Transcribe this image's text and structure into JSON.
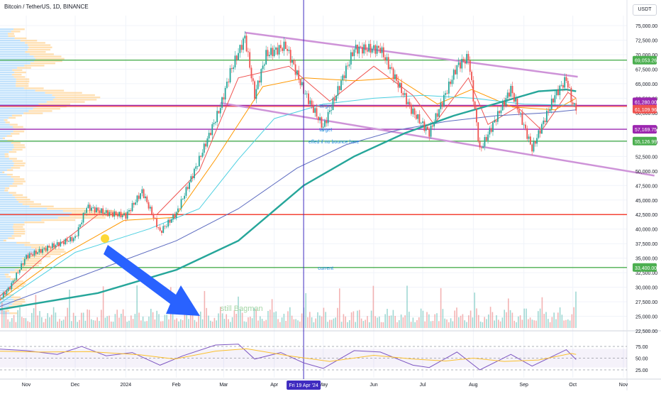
{
  "header": {
    "title": "Bitcoin / TetherUS, 1D, BINANCE",
    "unit_button": "USDT"
  },
  "chart_data": {
    "type": "candlestick",
    "title": "Bitcoin / TetherUS, 1D, BINANCE",
    "y_axis": {
      "unit": "USDT",
      "range": [
        22500,
        77500
      ],
      "tick_labels": [
        "75,000.00",
        "72,500.00",
        "70,000.00",
        "67,500.00",
        "65,000.00",
        "62,500.00",
        "60,000.00",
        "57,500.00",
        "55,000.00",
        "52,500.00",
        "50,000.00",
        "47,500.00",
        "45,000.00",
        "42,500.00",
        "40,000.00",
        "37,500.00",
        "35,000.00",
        "32,500.00",
        "30,000.00",
        "27,500.00",
        "25,000.00",
        "22,500.00"
      ],
      "tick_values": [
        75000,
        72500,
        70000,
        67500,
        65000,
        62500,
        60000,
        57500,
        55000,
        52500,
        50000,
        47500,
        45000,
        42500,
        40000,
        37500,
        35000,
        32500,
        30000,
        27500,
        25000,
        22500
      ]
    },
    "x_axis": {
      "tick_labels": [
        "Nov",
        "Dec",
        "2024",
        "Feb",
        "Mar",
        "Apr",
        "May",
        "Jun",
        "Jul",
        "Aug",
        "Sep",
        "Oct",
        "Nov"
      ],
      "tick_dates": [
        "2023-11-01",
        "2023-12-01",
        "2024-01-01",
        "2024-02-01",
        "2024-03-01",
        "2024-04-01",
        "2024-05-01",
        "2024-06-01",
        "2024-07-01",
        "2024-08-01",
        "2024-09-01",
        "2024-10-01",
        "2024-11-01"
      ],
      "crosshair_label": "Fri 19 Apr '24",
      "crosshair_date": "2024-04-19"
    },
    "price_close_path": [
      [
        "2023-10-12",
        26800
      ],
      [
        "2023-10-22",
        30000
      ],
      [
        "2023-11-01",
        35300
      ],
      [
        "2023-11-15",
        36900
      ],
      [
        "2023-12-01",
        38500
      ],
      [
        "2023-12-08",
        43800
      ],
      [
        "2023-12-20",
        42800
      ],
      [
        "2024-01-01",
        42300
      ],
      [
        "2024-01-11",
        46500
      ],
      [
        "2024-01-22",
        39500
      ],
      [
        "2024-02-01",
        42700
      ],
      [
        "2024-02-15",
        52000
      ],
      [
        "2024-02-28",
        61000
      ],
      [
        "2024-03-05",
        67000
      ],
      [
        "2024-03-14",
        73000
      ],
      [
        "2024-03-20",
        63000
      ],
      [
        "2024-03-27",
        70000
      ],
      [
        "2024-04-08",
        71500
      ],
      [
        "2024-04-19",
        63800
      ],
      [
        "2024-05-01",
        57500
      ],
      [
        "2024-05-20",
        71000
      ],
      [
        "2024-06-05",
        71000
      ],
      [
        "2024-06-24",
        60500
      ],
      [
        "2024-07-05",
        56500
      ],
      [
        "2024-07-22",
        68000
      ],
      [
        "2024-07-29",
        69500
      ],
      [
        "2024-08-05",
        53500
      ],
      [
        "2024-08-24",
        64100
      ],
      [
        "2024-09-06",
        53800
      ],
      [
        "2024-09-20",
        63000
      ],
      [
        "2024-09-27",
        65800
      ],
      [
        "2024-10-01",
        61300
      ],
      [
        "2024-10-03",
        61100
      ]
    ],
    "moving_averages": [
      {
        "color": "#ef5350",
        "points": [
          [
            "2023-10-12",
            27500
          ],
          [
            "2023-11-15",
            36000
          ],
          [
            "2023-12-15",
            42500
          ],
          [
            "2024-01-20",
            42500
          ],
          [
            "2024-02-15",
            50000
          ],
          [
            "2024-03-10",
            66000
          ],
          [
            "2024-04-10",
            68000
          ],
          [
            "2024-05-05",
            62000
          ],
          [
            "2024-06-01",
            68000
          ],
          [
            "2024-06-25",
            63000
          ],
          [
            "2024-07-08",
            58000
          ],
          [
            "2024-07-29",
            66000
          ],
          [
            "2024-08-10",
            58000
          ],
          [
            "2024-08-28",
            61000
          ],
          [
            "2024-09-12",
            57000
          ],
          [
            "2024-09-28",
            63500
          ],
          [
            "2024-10-03",
            62500
          ]
        ]
      },
      {
        "color": "#ff9800",
        "points": [
          [
            "2023-10-12",
            27000
          ],
          [
            "2023-11-20",
            35000
          ],
          [
            "2023-12-31",
            41500
          ],
          [
            "2024-01-31",
            42000
          ],
          [
            "2024-02-25",
            52000
          ],
          [
            "2024-03-25",
            64500
          ],
          [
            "2024-04-20",
            66000
          ],
          [
            "2024-05-20",
            65500
          ],
          [
            "2024-06-15",
            66000
          ],
          [
            "2024-07-10",
            61500
          ],
          [
            "2024-07-31",
            64000
          ],
          [
            "2024-08-25",
            61000
          ],
          [
            "2024-09-20",
            60500
          ],
          [
            "2024-10-03",
            62500
          ]
        ]
      },
      {
        "color": "#4dd0e1",
        "points": [
          [
            "2023-10-12",
            26500
          ],
          [
            "2023-12-01",
            36000
          ],
          [
            "2024-01-15",
            40000
          ],
          [
            "2024-02-15",
            43500
          ],
          [
            "2024-03-10",
            52000
          ],
          [
            "2024-04-01",
            59000
          ],
          [
            "2024-05-01",
            61500
          ],
          [
            "2024-06-01",
            62500
          ],
          [
            "2024-07-01",
            63000
          ],
          [
            "2024-08-01",
            62500
          ],
          [
            "2024-09-01",
            61500
          ],
          [
            "2024-10-03",
            61300
          ]
        ]
      },
      {
        "color": "#5c6bc0",
        "points": [
          [
            "2023-10-12",
            26300
          ],
          [
            "2023-12-15",
            33000
          ],
          [
            "2024-02-01",
            38000
          ],
          [
            "2024-03-10",
            43500
          ],
          [
            "2024-04-15",
            50500
          ],
          [
            "2024-05-15",
            54500
          ],
          [
            "2024-06-15",
            57000
          ],
          [
            "2024-07-15",
            58500
          ],
          [
            "2024-08-15",
            59500
          ],
          [
            "2024-09-15",
            60000
          ],
          [
            "2024-10-03",
            60500
          ]
        ]
      },
      {
        "color": "#26a69a",
        "points": [
          [
            "2023-10-12",
            26000
          ],
          [
            "2023-12-15",
            29000
          ],
          [
            "2024-02-01",
            33000
          ],
          [
            "2024-03-10",
            38000
          ],
          [
            "2024-04-19",
            47500
          ],
          [
            "2024-05-20",
            52500
          ],
          [
            "2024-06-20",
            56500
          ],
          [
            "2024-07-20",
            59500
          ],
          [
            "2024-08-20",
            62000
          ],
          [
            "2024-09-10",
            63700
          ],
          [
            "2024-09-27",
            64000
          ],
          [
            "2024-10-03",
            63700
          ]
        ]
      }
    ],
    "horizontal_levels": [
      {
        "price": 69053.26,
        "label": "69,053.26",
        "color": "#4caf50"
      },
      {
        "price": 61280.0,
        "label": "61,280.00",
        "color": "#9c27b0"
      },
      {
        "price": 61109.96,
        "label": "61,109.96",
        "color": "#ef5350"
      },
      {
        "price": 57169.75,
        "label": "57,169.75",
        "color": "#9c27b0"
      },
      {
        "price": 55126.99,
        "label": "55,126.99",
        "color": "#4caf50"
      },
      {
        "price": 42500,
        "label": "",
        "color": "#f44336"
      },
      {
        "price": 33400.0,
        "label": "33,400.00",
        "color": "#4caf50"
      }
    ],
    "channel_lines": [
      {
        "color": "#ce93d8",
        "from": [
          "2024-03-14",
          73800
        ],
        "to": [
          "2024-10-04",
          66200
        ]
      },
      {
        "color": "#ce93d8",
        "from": [
          "2024-02-28",
          61700
        ],
        "to": [
          "2024-11-20",
          49200
        ]
      }
    ],
    "annotations": [
      {
        "text": "target",
        "date": "2024-04-26",
        "price": 61280
      },
      {
        "text": "target",
        "date": "2024-04-26",
        "price": 57169
      },
      {
        "text": "effed if no bounce here",
        "date": "2024-05-01",
        "price": 55126
      },
      {
        "text": "current",
        "date": "2024-04-26",
        "price": 33400
      },
      {
        "text": "still Bagman",
        "date": "2024-02-28",
        "price": 26300
      }
    ],
    "rsi": {
      "tick_labels": [
        "75.00",
        "50.00",
        "25.00"
      ],
      "tick_values": [
        75,
        50,
        25
      ],
      "band": [
        30,
        70
      ],
      "rsi_path": [
        [
          "2023-10-12",
          70
        ],
        [
          "2023-11-01",
          66
        ],
        [
          "2023-11-20",
          58
        ],
        [
          "2023-12-05",
          75
        ],
        [
          "2023-12-20",
          55
        ],
        [
          "2024-01-05",
          62
        ],
        [
          "2024-01-22",
          35
        ],
        [
          "2024-02-05",
          55
        ],
        [
          "2024-02-25",
          78
        ],
        [
          "2024-03-10",
          80
        ],
        [
          "2024-03-20",
          48
        ],
        [
          "2024-04-05",
          62
        ],
        [
          "2024-04-19",
          40
        ],
        [
          "2024-05-01",
          28
        ],
        [
          "2024-05-20",
          66
        ],
        [
          "2024-06-05",
          63
        ],
        [
          "2024-06-25",
          35
        ],
        [
          "2024-07-05",
          30
        ],
        [
          "2024-07-22",
          63
        ],
        [
          "2024-08-05",
          25
        ],
        [
          "2024-08-24",
          58
        ],
        [
          "2024-09-06",
          33
        ],
        [
          "2024-09-27",
          68
        ],
        [
          "2024-10-03",
          47
        ]
      ],
      "signal_path": [
        [
          "2023-10-12",
          65
        ],
        [
          "2023-11-10",
          63
        ],
        [
          "2023-12-10",
          64
        ],
        [
          "2024-01-10",
          57
        ],
        [
          "2024-01-31",
          48
        ],
        [
          "2024-02-25",
          65
        ],
        [
          "2024-03-15",
          70
        ],
        [
          "2024-04-10",
          55
        ],
        [
          "2024-05-05",
          43
        ],
        [
          "2024-06-01",
          56
        ],
        [
          "2024-06-25",
          48
        ],
        [
          "2024-07-15",
          44
        ],
        [
          "2024-08-01",
          50
        ],
        [
          "2024-08-20",
          43
        ],
        [
          "2024-09-10",
          46
        ],
        [
          "2024-09-30",
          60
        ],
        [
          "2024-10-03",
          58
        ]
      ]
    }
  }
}
